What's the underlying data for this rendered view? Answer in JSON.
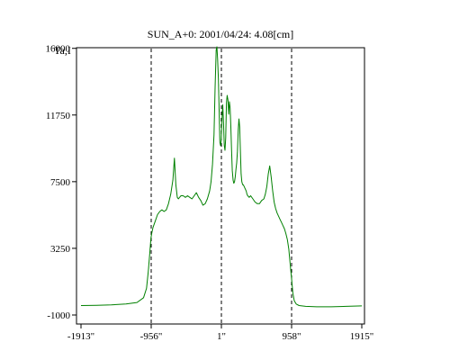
{
  "chart_data": {
    "type": "line",
    "title": "SUN_A+0: 2001/04/24: 4.08[cm]",
    "ylabel": "Ta,I",
    "xlabel": "",
    "x_range": [
      -1913,
      1915
    ],
    "ylim": [
      -1000,
      16500
    ],
    "x_ticks": [
      {
        "value": -1913,
        "label": "-1913\""
      },
      {
        "value": -956,
        "label": "-956\""
      },
      {
        "value": 1,
        "label": "1\""
      },
      {
        "value": 958,
        "label": "958\""
      },
      {
        "value": 1915,
        "label": "1915\""
      }
    ],
    "y_ticks": [
      {
        "value": 16000,
        "label": "16000"
      },
      {
        "value": 11750,
        "label": "11750"
      },
      {
        "value": 7500,
        "label": "7500"
      },
      {
        "value": 3250,
        "label": "3250"
      },
      {
        "value": -1000,
        "label": "-1000"
      }
    ],
    "reference_lines_x": [
      -956,
      1,
      958
    ],
    "grid": false,
    "series": [
      {
        "color": "#008000",
        "x": [
          -1913,
          -1700,
          -1500,
          -1300,
          -1150,
          -1060,
          -1020,
          -995,
          -975,
          -960,
          -945,
          -930,
          -900,
          -870,
          -840,
          -810,
          -780,
          -750,
          -720,
          -690,
          -660,
          -640,
          -620,
          -600,
          -585,
          -570,
          -550,
          -520,
          -490,
          -460,
          -430,
          -400,
          -370,
          -340,
          -310,
          -280,
          -250,
          -220,
          -190,
          -160,
          -140,
          -120,
          -100,
          -85,
          -70,
          -60,
          -50,
          -40,
          -30,
          -20,
          -10,
          0,
          10,
          20,
          30,
          40,
          50,
          60,
          70,
          80,
          90,
          100,
          110,
          120,
          130,
          140,
          150,
          160,
          170,
          180,
          190,
          200,
          210,
          220,
          230,
          240,
          250,
          260,
          270,
          280,
          290,
          300,
          310,
          320,
          330,
          340,
          350,
          360,
          380,
          400,
          430,
          460,
          490,
          520,
          550,
          580,
          600,
          620,
          640,
          660,
          680,
          700,
          720,
          740,
          760,
          780,
          800,
          820,
          840,
          860,
          880,
          900,
          920,
          940,
          958,
          975,
          995,
          1020,
          1060,
          1150,
          1300,
          1500,
          1700,
          1915
        ],
        "y": [
          -400,
          -380,
          -350,
          -300,
          -200,
          100,
          700,
          1800,
          3000,
          3900,
          4300,
          4600,
          5000,
          5400,
          5600,
          5700,
          5600,
          5700,
          6100,
          6700,
          7600,
          9000,
          7300,
          6500,
          6400,
          6500,
          6600,
          6600,
          6500,
          6600,
          6500,
          6400,
          6600,
          6800,
          6500,
          6300,
          6000,
          6100,
          6400,
          6900,
          7500,
          8600,
          10500,
          13500,
          15900,
          16100,
          15300,
          14000,
          12000,
          10000,
          9800,
          10200,
          11500,
          12400,
          11200,
          9800,
          9500,
          10300,
          12500,
          13000,
          12700,
          11800,
          12600,
          12200,
          11000,
          9500,
          8200,
          7600,
          7400,
          7500,
          7800,
          8300,
          8700,
          9400,
          10800,
          11500,
          11000,
          9500,
          8000,
          7500,
          7300,
          7300,
          7200,
          7100,
          7000,
          6900,
          6700,
          6600,
          6500,
          6600,
          6400,
          6200,
          6100,
          6100,
          6300,
          6400,
          6700,
          7200,
          8000,
          8500,
          7800,
          6900,
          6200,
          5800,
          5500,
          5300,
          5100,
          4900,
          4700,
          4500,
          4200,
          3800,
          3200,
          2200,
          1300,
          400,
          -100,
          -300,
          -400,
          -450,
          -480,
          -480,
          -450,
          -420
        ]
      }
    ]
  }
}
